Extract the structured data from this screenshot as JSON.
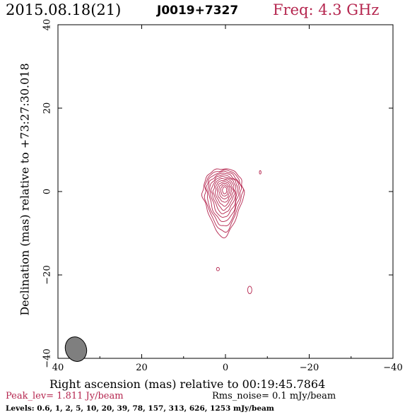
{
  "header": {
    "date_label": "2015.08.18(21)",
    "source_name": "J0019+7327",
    "freq_label": "Freq: 4.3 GHz"
  },
  "footer": {
    "peak_label": "Peak_lev=  1.811 Jy/beam",
    "rms_label": "Rms_noise=   0.1 mJy/beam",
    "levels_label": "Levels: 0.6,    1,    2,    5,   10,   20,   39,   78,  157,  313,  626,  1253 mJy/beam"
  },
  "colors": {
    "contour": "#b5264f",
    "beam": "#7f7f7f"
  },
  "chart_data": {
    "type": "contour",
    "xlabel": "Right ascension (mas) relative to 00:19:45.7864",
    "ylabel": "Declination (mas) relative to +73:27:30.018",
    "xlim": [
      40,
      -40
    ],
    "ylim": [
      -40,
      40
    ],
    "x_ticks": [
      40,
      20,
      0,
      -20,
      -40
    ],
    "y_ticks": [
      -40,
      -20,
      0,
      20,
      40
    ],
    "x_tick_labels": [
      "40",
      "20",
      "0",
      "−20",
      "−40"
    ],
    "y_tick_labels": [
      "−40",
      "−20",
      "0",
      "20",
      "40"
    ],
    "peak_jy_per_beam": 1.811,
    "rms_noise_mjy_per_beam": 0.1,
    "levels_mjy_per_beam": [
      0.6,
      1,
      2,
      5,
      10,
      20,
      39,
      78,
      157,
      313,
      626,
      1253
    ],
    "contour_center_mas": [
      0.2,
      0.3
    ],
    "beam": {
      "ra_mas": 35.7,
      "dec_mas": -37.8,
      "major_mas": 3.0,
      "minor_mas": 2.5,
      "pa_deg": 20
    },
    "components": [
      {
        "ra": -8.3,
        "dec": 4.6,
        "rx": 0.2,
        "ry": 0.4
      },
      {
        "ra": 1.8,
        "dec": -18.6,
        "rx": 0.35,
        "ry": 0.4
      },
      {
        "ra": -5.8,
        "dec": -23.6,
        "rx": 0.5,
        "ry": 0.9
      }
    ]
  }
}
